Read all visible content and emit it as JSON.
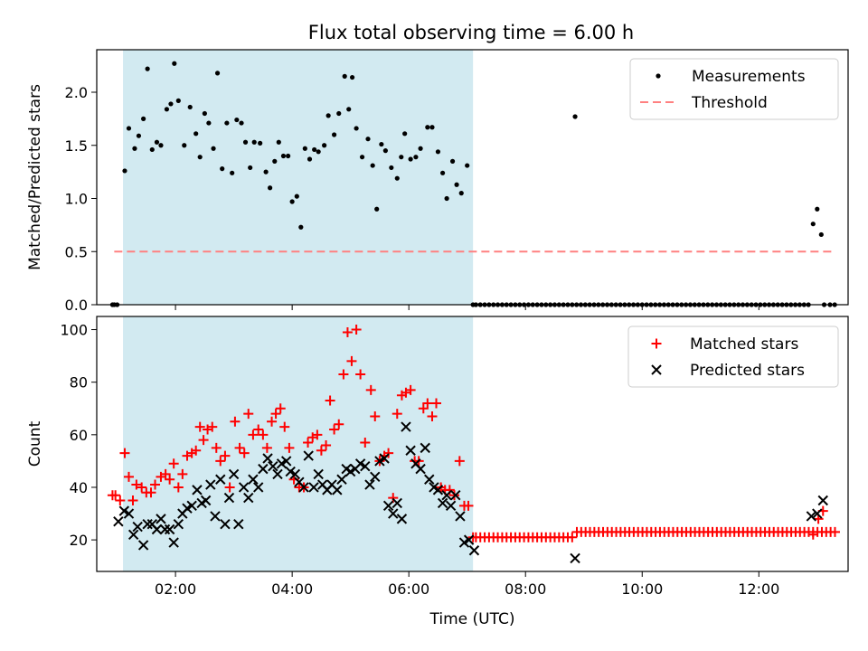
{
  "title": "Flux total observing time = 6.00 h",
  "colors": {
    "span": "#add8e6",
    "measurement": "#000000",
    "threshold": "#ff8080",
    "matched": "#ff0000",
    "predicted": "#000000"
  },
  "chart_data": [
    {
      "type": "scatter",
      "panel": "top",
      "xlabel": "",
      "ylabel": "Matched/Predicted stars",
      "xlim": [
        0.65,
        13.53
      ],
      "ylim": [
        0,
        2.4
      ],
      "y_ticks": [
        0.0,
        0.5,
        1.0,
        1.5,
        2.0
      ],
      "y_tick_labels": [
        "0.0",
        "0.5",
        "1.0",
        "1.5",
        "2.0"
      ],
      "x_ticks": [
        2,
        4,
        6,
        8,
        10,
        12
      ],
      "x_tick_labels_visible": false,
      "shaded_span": [
        1.1,
        7.1
      ],
      "legend_position": "upper right",
      "legend": [
        {
          "label": "Measurements",
          "kind": "dot"
        },
        {
          "label": "Threshold",
          "kind": "dashed-line"
        }
      ],
      "threshold": {
        "name": "Threshold",
        "y": 0.5,
        "x_range": [
          0.95,
          13.3
        ]
      },
      "measurements": {
        "x": [
          0.92,
          0.95,
          1.0,
          1.13,
          1.2,
          1.3,
          1.37,
          1.45,
          1.52,
          1.6,
          1.68,
          1.75,
          1.85,
          1.92,
          1.98,
          2.05,
          2.15,
          2.25,
          2.35,
          2.42,
          2.5,
          2.57,
          2.65,
          2.72,
          2.8,
          2.88,
          2.97,
          3.05,
          3.13,
          3.2,
          3.28,
          3.35,
          3.45,
          3.55,
          3.62,
          3.7,
          3.77,
          3.85,
          3.93,
          4.0,
          4.08,
          4.15,
          4.22,
          4.3,
          4.38,
          4.45,
          4.55,
          4.62,
          4.72,
          4.8,
          4.9,
          4.97,
          5.03,
          5.1,
          5.2,
          5.3,
          5.38,
          5.45,
          5.53,
          5.6,
          5.7,
          5.8,
          5.87,
          5.93,
          6.03,
          6.12,
          6.2,
          6.32,
          6.4,
          6.5,
          6.58,
          6.65,
          6.75,
          6.82,
          6.9,
          7.0,
          7.1
        ],
        "y": [
          0.0,
          0.0,
          0.0,
          1.26,
          1.66,
          1.47,
          1.59,
          1.75,
          2.22,
          1.46,
          1.53,
          1.5,
          1.84,
          1.89,
          2.27,
          1.92,
          1.5,
          1.86,
          1.61,
          1.39,
          1.8,
          1.71,
          1.47,
          2.18,
          1.28,
          1.71,
          1.24,
          1.74,
          1.71,
          1.53,
          1.29,
          1.53,
          1.52,
          1.25,
          1.1,
          1.35,
          1.53,
          1.4,
          1.4,
          0.97,
          1.02,
          0.73,
          1.47,
          1.37,
          1.46,
          1.44,
          1.5,
          1.78,
          1.6,
          1.8,
          2.15,
          1.84,
          2.14,
          1.66,
          1.39,
          1.56,
          1.31,
          0.9,
          1.51,
          1.45,
          1.29,
          1.19,
          1.39,
          1.61,
          1.37,
          1.39,
          1.47,
          1.67,
          1.67,
          1.44,
          1.24,
          1.0,
          1.35,
          1.13,
          1.05,
          1.31,
          0.0
        ],
        "zero_run": {
          "from": 7.15,
          "to": 12.85,
          "step": 0.075,
          "y": 0.0
        },
        "x_late": [
          8.85,
          12.93,
          13.0,
          13.07,
          13.12,
          13.22,
          13.3
        ],
        "y_late": [
          1.77,
          0.76,
          0.9,
          0.66,
          0.0,
          0.0,
          0.0
        ]
      }
    },
    {
      "type": "scatter",
      "panel": "bottom",
      "xlabel": "Time (UTC)",
      "ylabel": "Count",
      "xlim": [
        0.65,
        13.53
      ],
      "ylim": [
        8,
        105
      ],
      "y_ticks": [
        20,
        40,
        60,
        80,
        100
      ],
      "y_tick_labels": [
        "20",
        "40",
        "60",
        "80",
        "100"
      ],
      "x_ticks": [
        2,
        4,
        6,
        8,
        10,
        12
      ],
      "x_tick_labels": [
        "02:00",
        "04:00",
        "06:00",
        "08:00",
        "10:00",
        "12:00"
      ],
      "shaded_span": [
        1.1,
        7.1
      ],
      "legend_position": "upper right",
      "series": [
        {
          "name": "Matched stars",
          "marker": "plus",
          "x": [
            0.92,
            0.97,
            1.05,
            1.13,
            1.2,
            1.27,
            1.33,
            1.42,
            1.5,
            1.58,
            1.65,
            1.75,
            1.83,
            1.9,
            1.97,
            2.05,
            2.12,
            2.2,
            2.28,
            2.35,
            2.42,
            2.48,
            2.55,
            2.63,
            2.7,
            2.77,
            2.85,
            2.93,
            3.02,
            3.1,
            3.18,
            3.25,
            3.33,
            3.42,
            3.5,
            3.57,
            3.65,
            3.72,
            3.8,
            3.87,
            3.95,
            4.03,
            4.12,
            4.2,
            4.27,
            4.35,
            4.43,
            4.5,
            4.58,
            4.65,
            4.72,
            4.8,
            4.88,
            4.95,
            5.02,
            5.1,
            5.17,
            5.25,
            5.35,
            5.42,
            5.5,
            5.58,
            5.65,
            5.73,
            5.8,
            5.88,
            5.95,
            6.03,
            6.1,
            6.17,
            6.25,
            6.32,
            6.4,
            6.47,
            6.55,
            6.62,
            6.7,
            6.78,
            6.87,
            6.95,
            7.02,
            7.1
          ],
          "y": [
            37,
            37,
            35,
            53,
            44,
            35,
            41,
            40,
            38,
            38,
            41,
            44,
            45,
            43,
            49,
            40,
            45,
            52,
            53,
            54,
            63,
            58,
            62,
            63,
            55,
            50,
            52,
            40,
            65,
            55,
            53,
            68,
            60,
            62,
            60,
            55,
            65,
            68,
            70,
            63,
            55,
            43,
            40,
            40,
            57,
            59,
            60,
            54,
            56,
            73,
            62,
            64,
            83,
            99,
            88,
            100,
            83,
            57,
            77,
            67,
            50,
            52,
            53,
            36,
            68,
            75,
            76,
            77,
            50,
            50,
            70,
            72,
            67,
            72,
            40,
            39,
            39,
            37,
            50,
            33,
            33,
            21
          ],
          "flat_run": {
            "from": 7.15,
            "to": 8.8,
            "step": 0.075,
            "y": 21
          },
          "flat_run_2": {
            "from": 8.88,
            "to": 13.32,
            "step": 0.075,
            "y": 23
          },
          "x_late": [
            12.93,
            13.02,
            13.1
          ],
          "y_late": [
            22,
            28,
            31
          ]
        },
        {
          "name": "Predicted stars",
          "marker": "x",
          "x": [
            1.02,
            1.12,
            1.2,
            1.28,
            1.35,
            1.45,
            1.52,
            1.6,
            1.68,
            1.75,
            1.82,
            1.9,
            1.97,
            2.05,
            2.12,
            2.2,
            2.28,
            2.37,
            2.45,
            2.52,
            2.6,
            2.68,
            2.77,
            2.85,
            2.92,
            3.0,
            3.08,
            3.17,
            3.25,
            3.33,
            3.42,
            3.5,
            3.58,
            3.67,
            3.75,
            3.82,
            3.9,
            3.97,
            4.05,
            4.12,
            4.2,
            4.28,
            4.37,
            4.45,
            4.52,
            4.6,
            4.68,
            4.77,
            4.85,
            4.93,
            5.0,
            5.08,
            5.17,
            5.25,
            5.33,
            5.42,
            5.5,
            5.58,
            5.65,
            5.73,
            5.8,
            5.88,
            5.95,
            6.03,
            6.12,
            6.2,
            6.28,
            6.35,
            6.43,
            6.5,
            6.58,
            6.65,
            6.72,
            6.8,
            6.88,
            6.95,
            7.03,
            7.12,
            8.85,
            12.9,
            13.0,
            13.1
          ],
          "y": [
            27,
            31,
            30,
            22,
            25,
            18,
            26,
            26,
            24,
            28,
            24,
            24,
            19,
            26,
            30,
            32,
            33,
            39,
            34,
            35,
            41,
            29,
            43,
            26,
            36,
            45,
            26,
            40,
            36,
            43,
            40,
            47,
            51,
            48,
            45,
            49,
            50,
            46,
            45,
            42,
            40,
            52,
            40,
            45,
            41,
            39,
            41,
            39,
            43,
            47,
            46,
            47,
            49,
            48,
            41,
            44,
            50,
            51,
            33,
            30,
            34,
            28,
            63,
            54,
            49,
            47,
            55,
            43,
            40,
            39,
            34,
            37,
            33,
            37,
            29,
            19,
            20,
            16,
            13,
            29,
            30,
            35
          ]
        }
      ]
    }
  ]
}
